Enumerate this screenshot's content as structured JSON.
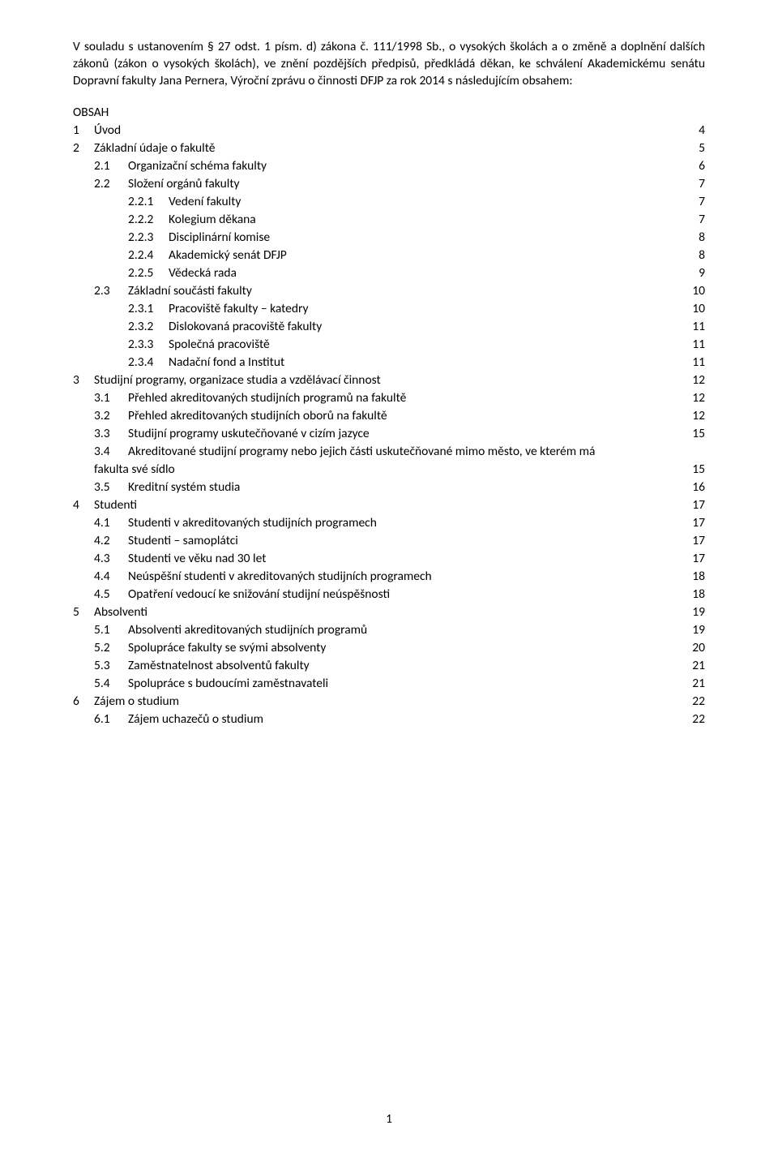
{
  "intro": "V souladu s ustanovením § 27 odst. 1 písm. d) zákona č. 111/1998 Sb., o vysokých školách a o změně a doplnění dalších zákonů (zákon o vysokých školách), ve znění pozdějších předpisů, předkládá děkan, ke schválení Akademickému senátu Dopravní fakulty Jana Pernera, Výroční zprávu o činnosti DFJP za rok 2014 s následujícím obsahem:",
  "obsah": "OBSAH",
  "toc": [
    {
      "lvl": 1,
      "num": "1",
      "label": "Úvod",
      "page": "4"
    },
    {
      "lvl": 1,
      "num": "2",
      "label": "Základní údaje o fakultě",
      "page": "5"
    },
    {
      "lvl": 2,
      "num": "2.1",
      "label": "Organizační schéma fakulty",
      "page": "6"
    },
    {
      "lvl": 2,
      "num": "2.2",
      "label": "Složení orgánů fakulty",
      "page": "7"
    },
    {
      "lvl": 3,
      "num": "2.2.1",
      "label": "Vedení fakulty",
      "page": "7"
    },
    {
      "lvl": 3,
      "num": "2.2.2",
      "label": "Kolegium děkana",
      "page": "7"
    },
    {
      "lvl": 3,
      "num": "2.2.3",
      "label": "Disciplinární komise",
      "page": "8"
    },
    {
      "lvl": 3,
      "num": "2.2.4",
      "label": "Akademický senát DFJP",
      "page": "8"
    },
    {
      "lvl": 3,
      "num": "2.2.5",
      "label": "Vědecká rada",
      "page": "9"
    },
    {
      "lvl": 2,
      "num": "2.3",
      "label": "Základní součásti fakulty",
      "page": "10"
    },
    {
      "lvl": 3,
      "num": "2.3.1",
      "label": "Pracoviště fakulty – katedry",
      "page": "10"
    },
    {
      "lvl": 3,
      "num": "2.3.2",
      "label": "Dislokovaná pracoviště fakulty",
      "page": "11"
    },
    {
      "lvl": 3,
      "num": "2.3.3",
      "label": "Společná pracoviště",
      "page": "11"
    },
    {
      "lvl": 3,
      "num": "2.3.4",
      "label": "Nadační fond a Institut",
      "page": "11"
    },
    {
      "lvl": 1,
      "num": "3",
      "label": "Studijní programy, organizace studia a vzdělávací činnost",
      "page": "12"
    },
    {
      "lvl": 2,
      "num": "3.1",
      "label": "Přehled akreditovaných studijních programů na fakultě",
      "page": "12"
    },
    {
      "lvl": 2,
      "num": "3.2",
      "label": "Přehled akreditovaných studijních oborů na fakultě",
      "page": "12"
    },
    {
      "lvl": 2,
      "num": "3.3",
      "label": "Studijní programy uskutečňované v cizím jazyce",
      "page": "15"
    },
    {
      "lvl": 2,
      "num": "3.4",
      "label": "Akreditované studijní programy nebo jejich části uskutečňované mimo město, ve kterém má",
      "multiline": true
    },
    {
      "mlcont": true,
      "label": "fakulta své sídlo",
      "page": "15"
    },
    {
      "lvl": 2,
      "num": "3.5",
      "label": "Kreditní systém studia",
      "page": "16"
    },
    {
      "lvl": 1,
      "num": "4",
      "label": "Studenti",
      "page": "17"
    },
    {
      "lvl": 2,
      "num": "4.1",
      "label": "Studenti v akreditovaných studijních programech",
      "page": "17"
    },
    {
      "lvl": 2,
      "num": "4.2",
      "label": "Studenti – samoplátci",
      "page": "17"
    },
    {
      "lvl": 2,
      "num": "4.3",
      "label": "Studenti ve věku nad 30 let",
      "page": "17"
    },
    {
      "lvl": 2,
      "num": "4.4",
      "label": "Neúspěšní studenti v akreditovaných studijních programech",
      "page": "18"
    },
    {
      "lvl": 2,
      "num": "4.5",
      "label": "Opatření vedoucí ke snižování studijní neúspěšnosti",
      "page": "18"
    },
    {
      "lvl": 1,
      "num": "5",
      "label": "Absolventi",
      "page": "19"
    },
    {
      "lvl": 2,
      "num": "5.1",
      "label": "Absolventi akreditovaných studijních programů",
      "page": "19"
    },
    {
      "lvl": 2,
      "num": "5.2",
      "label": "Spolupráce fakulty se svými absolventy",
      "page": "20"
    },
    {
      "lvl": 2,
      "num": "5.3",
      "label": "Zaměstnatelnost absolventů fakulty",
      "page": "21"
    },
    {
      "lvl": 2,
      "num": "5.4",
      "label": "Spolupráce s budoucími zaměstnavateli",
      "page": "21"
    },
    {
      "lvl": 1,
      "num": "6",
      "label": "Zájem o studium",
      "page": "22"
    },
    {
      "lvl": 2,
      "num": "6.1",
      "label": "Zájem uchazečů o studium",
      "page": "22"
    }
  ],
  "pageNumber": "1"
}
